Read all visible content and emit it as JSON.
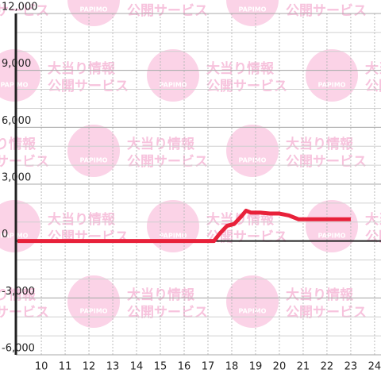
{
  "chart_data": {
    "type": "line",
    "watermark": {
      "line1": "大当り情報",
      "line2": "公開サービス",
      "logo": "PAPIMO"
    },
    "x": [
      9,
      17.25,
      17.5,
      17.8,
      18.1,
      18.4,
      18.6,
      18.8,
      19.2,
      19.6,
      20.0,
      20.4,
      20.8,
      23.0
    ],
    "series": [
      {
        "color": "#e8213a",
        "values": [
          0,
          0,
          400,
          800,
          900,
          1300,
          1600,
          1500,
          1500,
          1450,
          1450,
          1350,
          1150,
          1150
        ]
      }
    ],
    "xlim": [
      8.93,
      24.27
    ],
    "xticks": [
      10,
      11,
      12,
      13,
      14,
      15,
      16,
      17,
      18,
      19,
      20,
      21,
      22,
      23,
      24
    ],
    "ylim": [
      -6000,
      12000
    ],
    "yticks": [
      {
        "value": -6000,
        "label": "-6,000"
      },
      {
        "value": -3000,
        "label": "-3,000"
      },
      0,
      {
        "value": 3000,
        "label": "3,000"
      },
      {
        "value": 6000,
        "label": "6,000"
      },
      {
        "value": 9000,
        "label": "9,000"
      },
      {
        "value": 12000,
        "label": "12,000"
      }
    ],
    "grid": true
  }
}
